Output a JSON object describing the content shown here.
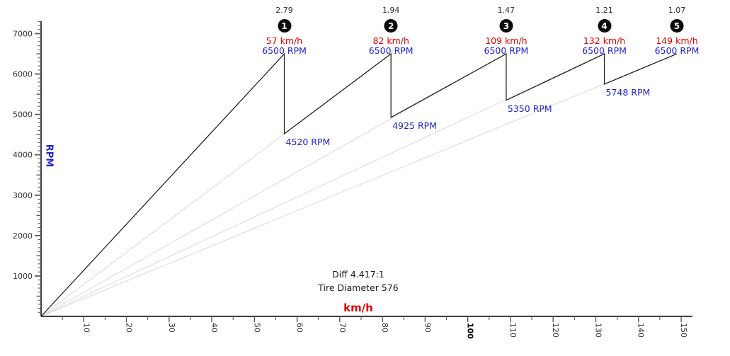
{
  "chart_data": {
    "type": "line",
    "title": "",
    "xlabel": "km/h",
    "ylabel": "RPM",
    "x_axis": {
      "min": 0,
      "max": 152,
      "tick_step": 5,
      "label_step": 10,
      "labeled_max": 150,
      "bold_label": 100
    },
    "y_axis": {
      "min": 0,
      "max": 7300,
      "tick_step": 100,
      "medium_step": 500,
      "label_step": 1000,
      "labeled_max": 7000
    },
    "grid": false,
    "diff_text": "Diff 4.417:1",
    "tire_text": "Tire Diameter 576",
    "shift_rpm": 6500,
    "gears": [
      {
        "number": "1",
        "ratio": "2.79",
        "max_speed_kmh": 57,
        "speed_label": "57 km/h",
        "rpm_label": "6500 RPM",
        "drop_rpm": 4520,
        "drop_label": "4520 RPM"
      },
      {
        "number": "2",
        "ratio": "1.94",
        "max_speed_kmh": 82,
        "speed_label": "82 km/h",
        "rpm_label": "6500 RPM",
        "drop_rpm": 4925,
        "drop_label": "4925 RPM"
      },
      {
        "number": "3",
        "ratio": "1.47",
        "max_speed_kmh": 109,
        "speed_label": "109 km/h",
        "rpm_label": "6500 RPM",
        "drop_rpm": 5350,
        "drop_label": "5350 RPM"
      },
      {
        "number": "4",
        "ratio": "1.21",
        "max_speed_kmh": 132,
        "speed_label": "132 km/h",
        "rpm_label": "6500 RPM",
        "drop_rpm": 5748,
        "drop_label": "5748 RPM"
      },
      {
        "number": "5",
        "ratio": "1.07",
        "max_speed_kmh": 149,
        "speed_label": "149 km/h",
        "rpm_label": "6500 RPM",
        "drop_rpm": null,
        "drop_label": null
      }
    ],
    "colors": {
      "gear_line": "#1c1c1c",
      "gear_overlay_line": "#dcdcdc",
      "speed_text": "#e00000",
      "rpm_text": "#2222cc",
      "axis": "#000000",
      "tick": "#5a5a5a",
      "tick_label": "#333333",
      "bold_tick_label": "#000000",
      "ratio_text": "#2b2b2b",
      "badge_bg": "#0b0b0b",
      "badge_text": "#ffffff",
      "info_text": "#1a1a1a"
    }
  }
}
